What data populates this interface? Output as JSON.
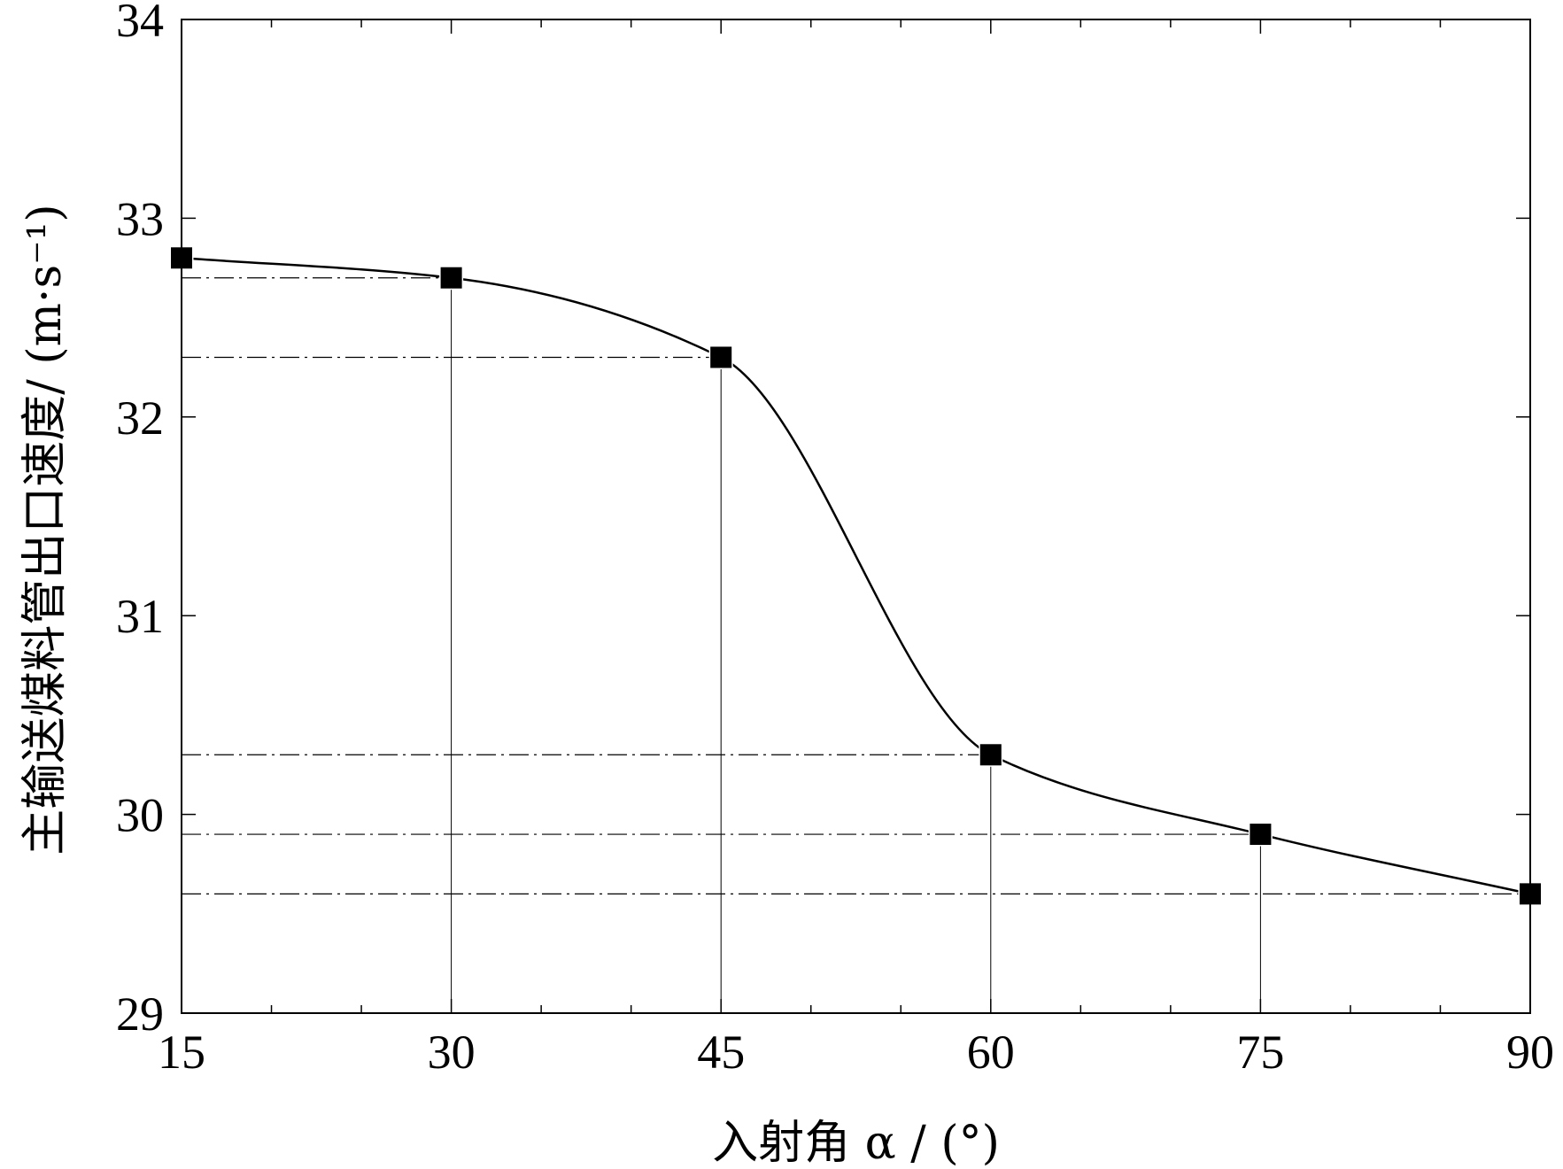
{
  "chart_data": {
    "type": "line",
    "xlabel": "入射角 α / (°)",
    "ylabel": "主输送煤料管出口速度/ (m·s⁻¹)",
    "xlim": [
      15,
      90
    ],
    "ylim": [
      29,
      34
    ],
    "xticks": [
      15,
      30,
      45,
      60,
      75,
      90
    ],
    "yticks": [
      29,
      30,
      31,
      32,
      33,
      34
    ],
    "grid": false,
    "marker": "square",
    "series": [
      {
        "x": [
          15,
          30,
          45,
          60,
          75,
          90
        ],
        "y": [
          32.8,
          32.7,
          32.3,
          30.3,
          29.9,
          29.6
        ]
      }
    ],
    "reference_lines": {
      "horizontal_dash_dot": [
        32.7,
        32.3,
        30.3,
        29.9,
        29.6
      ],
      "vertical_thin": [
        30,
        45,
        60,
        75
      ]
    }
  }
}
